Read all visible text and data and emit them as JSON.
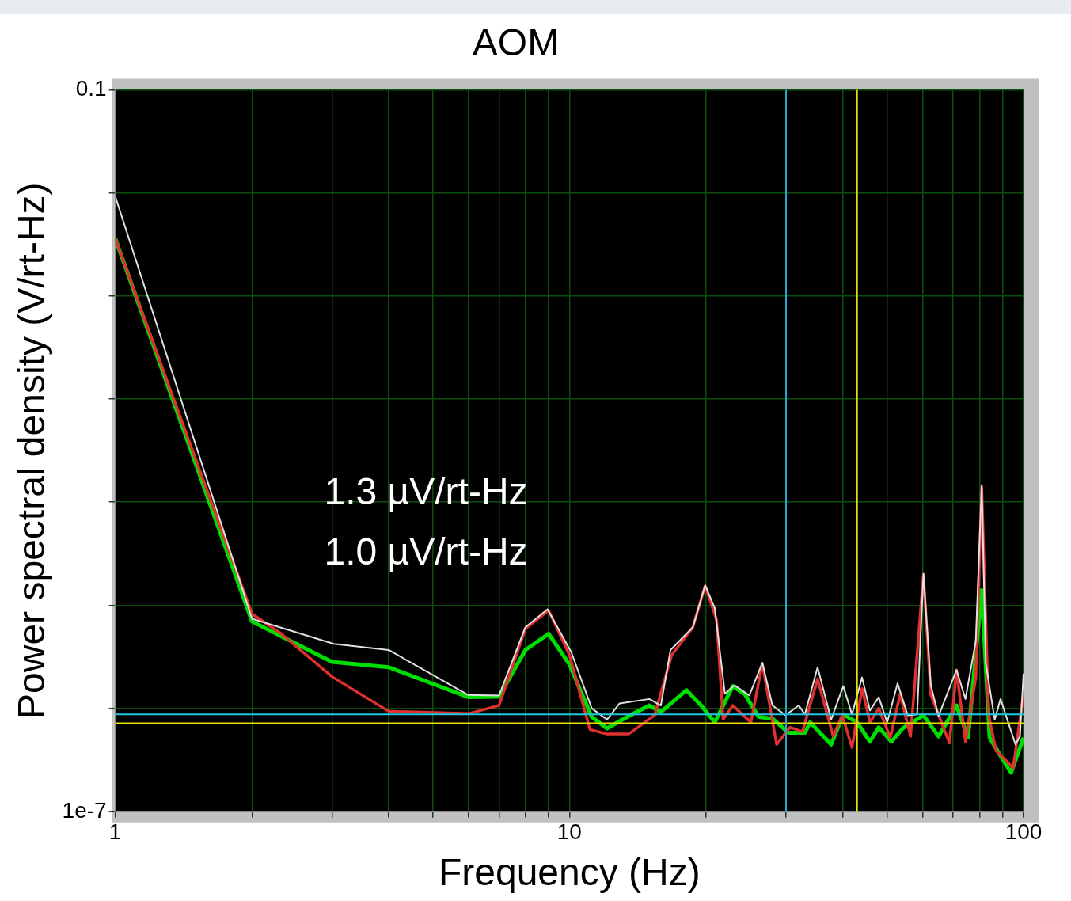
{
  "chart_data": {
    "type": "line",
    "title": "AOM",
    "xlabel": "Frequency (Hz)",
    "ylabel": "Power spectral density (V/rt-Hz)",
    "log": "xy",
    "grid": true,
    "legend": false,
    "marker": "none",
    "line_style": "solid",
    "xlim": [
      1,
      100
    ],
    "xticks": [
      1,
      {
        "value": 2,
        "label": null
      },
      {
        "value": 3,
        "label": null
      },
      {
        "value": 4,
        "label": null
      },
      {
        "value": 5,
        "label": null
      },
      {
        "value": 6,
        "label": null
      },
      {
        "value": 7,
        "label": null
      },
      {
        "value": 8,
        "label": null
      },
      {
        "value": 9,
        "label": null
      },
      10,
      {
        "value": 20,
        "label": null
      },
      {
        "value": 30,
        "label": null
      },
      {
        "value": 40,
        "label": null
      },
      {
        "value": 50,
        "label": null
      },
      {
        "value": 60,
        "label": null
      },
      {
        "value": 70,
        "label": null
      },
      {
        "value": 80,
        "label": null
      },
      {
        "value": 90,
        "label": null
      },
      100
    ],
    "ylim": [
      1e-07,
      0.1
    ],
    "yticks": [
      {
        "value": 1e-07,
        "label": "1e-7"
      },
      {
        "value": 7.2e-07,
        "label": null
      },
      {
        "value": 5.18e-06,
        "label": null
      },
      {
        "value": 3.73e-05,
        "label": null
      },
      {
        "value": 0.000268,
        "label": null
      },
      {
        "value": 0.00193,
        "label": null
      },
      {
        "value": 0.0139,
        "label": null
      },
      0.1
    ],
    "annotations": [
      "1.3 µV/rt-Hz",
      "1.0 µV/rt-Hz"
    ],
    "ref_lines": [
      {
        "axis": "y",
        "value": 6.4e-07,
        "color": "#20c8e0"
      },
      {
        "axis": "y",
        "value": 5.4e-07,
        "color": "#e8e000"
      },
      {
        "axis": "x",
        "value": 30,
        "color": "#2aa8d0"
      },
      {
        "axis": "x",
        "value": 43,
        "color": "#e8e000"
      }
    ],
    "series": [
      {
        "color": "#e0e0e0",
        "x": [
          1,
          2,
          3.03,
          4,
          5.98,
          7,
          8,
          8.95,
          10.1,
          11.2,
          12.1,
          12.9,
          15,
          15.9,
          16.7,
          18.7,
          19.9,
          20.9,
          22,
          23.1,
          24.9,
          26.6,
          28,
          29.9,
          32,
          33,
          35.2,
          37.7,
          40.1,
          41.9,
          44.1,
          45.9,
          48,
          50.1,
          52.8,
          55.6,
          58.3,
          60.2,
          62.5,
          65,
          71.2,
          74.5,
          78.5,
          80.9,
          82.6,
          86.4,
          89,
          96,
          98.2,
          100
        ],
        "values": [
          0.013,
          4e-06,
          2.47e-06,
          2.2e-06,
          9.3e-07,
          9.2e-07,
          3.4e-06,
          4.8e-06,
          2.1e-06,
          7.2e-07,
          5.8e-07,
          7.9e-07,
          8.6e-07,
          7.6e-07,
          2.2e-06,
          3.4e-06,
          7.6e-06,
          4.9e-06,
          9.5e-07,
          1.12e-06,
          9.2e-07,
          1.72e-06,
          7.6e-07,
          6.3e-07,
          7.6e-07,
          6.4e-07,
          1.58e-06,
          5.8e-07,
          1.1e-06,
          6.4e-07,
          1.3e-06,
          6.9e-07,
          8.9e-07,
          5.5e-07,
          1.16e-06,
          6.3e-07,
          6.4e-07,
          9.5e-06,
          1.12e-06,
          6.2e-07,
          1.5e-06,
          8.6e-07,
          2.6e-06,
          5.2e-05,
          1.7e-06,
          5.8e-07,
          8.6e-07,
          3.6e-07,
          4.2e-07,
          1.4e-06
        ]
      },
      {
        "color": "#e03030",
        "x": [
          1,
          2,
          2.32,
          3,
          4,
          6,
          7,
          8,
          9,
          10,
          11.1,
          12.1,
          13.5,
          15.4,
          16.8,
          18.7,
          19.9,
          21.1,
          21.8,
          22.9,
          25.1,
          26.6,
          28.6,
          30.6,
          32.6,
          35.2,
          38.1,
          39.9,
          41.9,
          44.1,
          45.9,
          48,
          50.9,
          53.5,
          56.4,
          60.2,
          62.5,
          68.7,
          71.2,
          74.5,
          78.5,
          80.9,
          83.8,
          87,
          94.9,
          100
        ],
        "values": [
          0.0058,
          4.4e-06,
          3e-06,
          1.32e-06,
          6.8e-07,
          6.5e-07,
          7.6e-07,
          3.3e-06,
          4.7e-06,
          2e-06,
          4.8e-07,
          4.4e-07,
          4.4e-07,
          6.3e-07,
          2e-06,
          3.4e-06,
          7.5e-06,
          3.9e-06,
          5.8e-07,
          7.6e-07,
          5.5e-07,
          1.7e-06,
          3.6e-07,
          5e-07,
          4.6e-07,
          1.26e-06,
          4.2e-07,
          6.3e-07,
          3.4e-07,
          1.05e-06,
          5.5e-07,
          7.2e-07,
          4.1e-07,
          9.5e-07,
          4.2e-07,
          9.3e-06,
          9.3e-07,
          3.7e-07,
          1.5e-06,
          3.8e-07,
          1.3e-06,
          5e-05,
          6.3e-07,
          3.2e-07,
          2.3e-07,
          9.5e-07
        ]
      },
      {
        "color": "#00dd00",
        "x": [
          1,
          2,
          3,
          4,
          6,
          7,
          8,
          9,
          10,
          11.2,
          12.1,
          13.4,
          15,
          15.9,
          18.1,
          19.5,
          20.9,
          22.9,
          24.3,
          26.1,
          28,
          30.4,
          33,
          33.9,
          37.7,
          40.1,
          43,
          45.9,
          48,
          51.2,
          54.2,
          60.2,
          65,
          71.2,
          75.5,
          80.9,
          84.2,
          88.5,
          93.9,
          100
        ],
        "values": [
          0.0058,
          3.8e-06,
          1.75e-06,
          1.58e-06,
          8.9e-07,
          9e-07,
          2.2e-06,
          3e-06,
          1.67e-06,
          6.1e-07,
          4.9e-07,
          6.1e-07,
          7.6e-07,
          6.7e-07,
          1.02e-06,
          7.6e-07,
          5.5e-07,
          1.1e-06,
          9.5e-07,
          6.1e-07,
          5.9e-07,
          4.5e-07,
          4.5e-07,
          5.5e-07,
          3.6e-07,
          6.4e-07,
          5.5e-07,
          3.8e-07,
          5e-07,
          3.8e-07,
          4.9e-07,
          6.3e-07,
          4.2e-07,
          7.6e-07,
          4.1e-07,
          6.9e-06,
          4.1e-07,
          3e-07,
          2.1e-07,
          4.1e-07
        ]
      }
    ]
  }
}
